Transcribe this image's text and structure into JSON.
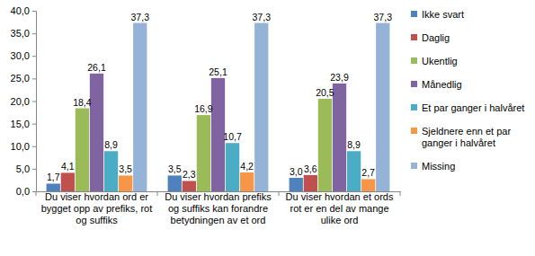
{
  "chart_data": {
    "type": "bar",
    "categories": [
      "Du viser hvordan ord er bygget opp av prefiks, rot og suffiks",
      "Du viser hvordan prefiks og suffiks kan forandre betydningen av et ord",
      "Du viser hvordan et ords rot er en del av mange ulike ord"
    ],
    "series": [
      {
        "name": "Ikke svart",
        "color": "#4f81bd",
        "values": [
          1.7,
          3.5,
          3.0
        ],
        "value_labels": [
          "1,7",
          "3,5",
          "3,0"
        ]
      },
      {
        "name": "Daglig",
        "color": "#c0504d",
        "values": [
          4.1,
          2.3,
          3.6
        ],
        "value_labels": [
          "4,1",
          "2,3",
          "3,6"
        ]
      },
      {
        "name": "Ukentlig",
        "color": "#9bbb59",
        "values": [
          18.4,
          16.9,
          20.5
        ],
        "value_labels": [
          "18,4",
          "16,9",
          "20,5"
        ]
      },
      {
        "name": "Månedlig",
        "color": "#8064a2",
        "values": [
          26.1,
          25.1,
          23.9
        ],
        "value_labels": [
          "26,1",
          "25,1",
          "23,9"
        ]
      },
      {
        "name": "Et par ganger i halvåret",
        "color": "#4bacc6",
        "values": [
          8.9,
          10.7,
          8.9
        ],
        "value_labels": [
          "8,9",
          "10,7",
          "8,9"
        ]
      },
      {
        "name": "Sjeldnere enn et par ganger i halvåret",
        "color": "#f79646",
        "values": [
          3.5,
          4.2,
          2.7
        ],
        "value_labels": [
          "3,5",
          "4,2",
          "2,7"
        ]
      },
      {
        "name": "Missing",
        "color": "#95b3d7",
        "values": [
          37.3,
          37.3,
          37.3
        ],
        "value_labels": [
          "37,3",
          "37,3",
          "37,3"
        ]
      }
    ],
    "ylim": [
      0,
      40
    ],
    "yticks": [
      {
        "value": 0,
        "label": "0,0"
      },
      {
        "value": 5,
        "label": "5,0"
      },
      {
        "value": 10,
        "label": "10,0"
      },
      {
        "value": 15,
        "label": "15,0"
      },
      {
        "value": 20,
        "label": "20,0"
      },
      {
        "value": 25,
        "label": "25,0"
      },
      {
        "value": 30,
        "label": "30,0"
      },
      {
        "value": 35,
        "label": "35,0"
      },
      {
        "value": 40,
        "label": "40,0"
      }
    ],
    "grid": false,
    "data_labels": true,
    "legend": "right"
  }
}
